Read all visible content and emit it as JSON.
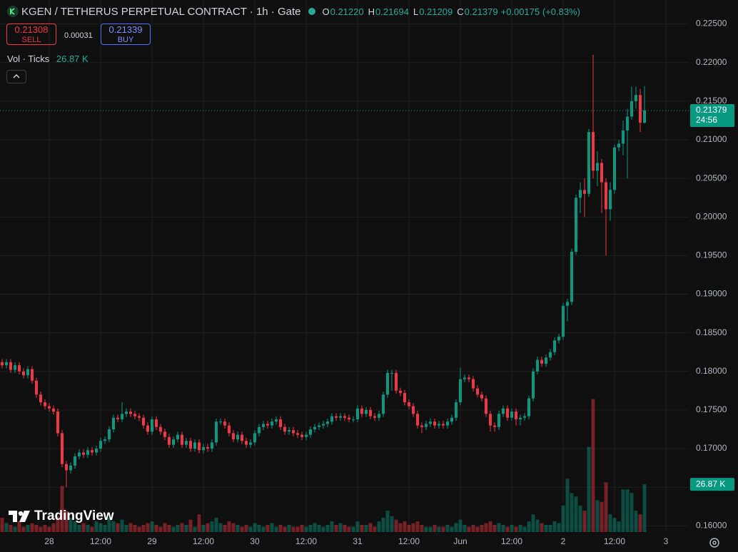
{
  "header": {
    "symbol_title": "KGEN / TETHERUS PERPETUAL CONTRACT · 1h · Gate",
    "ohlc": [
      {
        "key": "O",
        "value": "0.21220"
      },
      {
        "key": "H",
        "value": "0.21694"
      },
      {
        "key": "L",
        "value": "0.21209"
      },
      {
        "key": "C",
        "value": "0.21379"
      }
    ],
    "change": "+0.00175 (+0.83%)"
  },
  "trade_panel": {
    "sell_price": "0.21308",
    "sell_label": "SELL",
    "spread": "0.00031",
    "buy_price": "0.21339",
    "buy_label": "BUY"
  },
  "indicator": {
    "name": "Vol · Ticks",
    "value": "26.87 K"
  },
  "logo": "TradingView",
  "chart_data": {
    "type": "candlestick",
    "up_color": "#089981",
    "down_color": "#f23645",
    "grid": true,
    "xlim": [
      -0.5,
      160.33
    ],
    "xticks": [
      {
        "value": 11,
        "label": "28"
      },
      {
        "value": 23,
        "label": "12:00"
      },
      {
        "value": 35,
        "label": "29"
      },
      {
        "value": 47,
        "label": "12:00"
      },
      {
        "value": 59,
        "label": "30"
      },
      {
        "value": 71,
        "label": "12:00"
      },
      {
        "value": 83,
        "label": "31"
      },
      {
        "value": 95,
        "label": "12:00"
      },
      {
        "value": 107,
        "label": "Jun"
      },
      {
        "value": 119,
        "label": "12:00"
      },
      {
        "value": 131,
        "label": "2"
      },
      {
        "value": 143,
        "label": "12:00"
      },
      {
        "value": 155,
        "label": "3"
      }
    ],
    "ylim": [
      0.1592,
      0.2281
    ],
    "yticks": [
      {
        "value": 0.16,
        "label": "0.16000"
      },
      {
        "value": 0.165,
        "label": "0.16500"
      },
      {
        "value": 0.17,
        "label": "0.17000"
      },
      {
        "value": 0.175,
        "label": "0.17500"
      },
      {
        "value": 0.18,
        "label": "0.18000"
      },
      {
        "value": 0.185,
        "label": "0.18500"
      },
      {
        "value": 0.19,
        "label": "0.19000"
      },
      {
        "value": 0.195,
        "label": "0.19500"
      },
      {
        "value": 0.2,
        "label": "0.20000"
      },
      {
        "value": 0.205,
        "label": "0.20500"
      },
      {
        "value": 0.21,
        "label": "0.21000"
      },
      {
        "value": 0.215,
        "label": "0.21500"
      },
      {
        "value": 0.22,
        "label": "0.22000"
      },
      {
        "value": 0.225,
        "label": "0.22500"
      }
    ],
    "y2lim": [
      0,
      300
    ],
    "open": [
      0.1812,
      0.1808,
      0.1812,
      0.1802,
      0.1808,
      0.18,
      0.1795,
      0.1803,
      0.1788,
      0.177,
      0.176,
      0.1755,
      0.1752,
      0.1748,
      0.172,
      0.168,
      0.1672,
      0.1678,
      0.169,
      0.1695,
      0.1692,
      0.1698,
      0.1695,
      0.17,
      0.171,
      0.1712,
      0.1725,
      0.174,
      0.1738,
      0.1745,
      0.1748,
      0.1745,
      0.1742,
      0.174,
      0.173,
      0.1722,
      0.1738,
      0.1728,
      0.1722,
      0.1715,
      0.1705,
      0.1712,
      0.1718,
      0.1705,
      0.171,
      0.17,
      0.1708,
      0.1698,
      0.1702,
      0.17,
      0.1708,
      0.1735,
      0.1735,
      0.173,
      0.172,
      0.1712,
      0.1718,
      0.171,
      0.1705,
      0.1708,
      0.172,
      0.1728,
      0.1732,
      0.173,
      0.1735,
      0.1738,
      0.1728,
      0.1722,
      0.1724,
      0.172,
      0.1718,
      0.1715,
      0.1718,
      0.1725,
      0.1728,
      0.173,
      0.1732,
      0.1735,
      0.1742,
      0.174,
      0.1742,
      0.174,
      0.1738,
      0.1738,
      0.1752,
      0.1745,
      0.175,
      0.1742,
      0.174,
      0.1745,
      0.177,
      0.1798,
      0.1798,
      0.1775,
      0.1772,
      0.176,
      0.1755,
      0.1745,
      0.173,
      0.1728,
      0.1732,
      0.1735,
      0.173,
      0.1732,
      0.173,
      0.1735,
      0.174,
      0.176,
      0.179,
      0.1792,
      0.179,
      0.1778,
      0.177,
      0.1765,
      0.1745,
      0.173,
      0.1728,
      0.1745,
      0.1752,
      0.174,
      0.1748,
      0.1738,
      0.174,
      0.1742,
      0.1765,
      0.18,
      0.1815,
      0.181,
      0.1818,
      0.1825,
      0.184,
      0.1845,
      0.1885,
      0.189,
      0.1955,
      0.2025,
      0.2035,
      0.203,
      0.211,
      0.206,
      0.207,
      0.2045,
      0.201,
      0.2035,
      0.209,
      0.2095,
      0.2112,
      0.213,
      0.215,
      0.2158,
      0.2122
    ],
    "high": [
      0.1816,
      0.1816,
      0.1816,
      0.1812,
      0.1812,
      0.1804,
      0.1807,
      0.1807,
      0.1792,
      0.1774,
      0.1764,
      0.1759,
      0.1756,
      0.1752,
      0.1724,
      0.1684,
      0.1682,
      0.1694,
      0.1699,
      0.1699,
      0.1702,
      0.1702,
      0.1704,
      0.1714,
      0.1716,
      0.1729,
      0.1744,
      0.1744,
      0.176,
      0.1752,
      0.1752,
      0.1749,
      0.1746,
      0.1744,
      0.1734,
      0.1742,
      0.1742,
      0.1732,
      0.1726,
      0.1719,
      0.1716,
      0.1722,
      0.1722,
      0.1714,
      0.1714,
      0.1712,
      0.1712,
      0.1706,
      0.1706,
      0.1712,
      0.1739,
      0.1739,
      0.1739,
      0.1734,
      0.1724,
      0.1722,
      0.1722,
      0.1714,
      0.1712,
      0.1724,
      0.1732,
      0.1736,
      0.1736,
      0.1739,
      0.1742,
      0.1742,
      0.1732,
      0.1728,
      0.1728,
      0.1724,
      0.1722,
      0.1722,
      0.1729,
      0.1732,
      0.1734,
      0.1736,
      0.1739,
      0.1746,
      0.1746,
      0.1746,
      0.1746,
      0.1744,
      0.1742,
      0.1756,
      0.1756,
      0.1754,
      0.1754,
      0.1746,
      0.1749,
      0.1774,
      0.1802,
      0.1802,
      0.1802,
      0.1779,
      0.1776,
      0.1764,
      0.1759,
      0.1749,
      0.1734,
      0.1736,
      0.1739,
      0.1739,
      0.1736,
      0.1736,
      0.1739,
      0.1744,
      0.1764,
      0.1805,
      0.1796,
      0.1796,
      0.1794,
      0.1782,
      0.1774,
      0.1769,
      0.1749,
      0.1734,
      0.1749,
      0.1756,
      0.1756,
      0.1752,
      0.1752,
      0.1744,
      0.1746,
      0.1769,
      0.1804,
      0.1819,
      0.1819,
      0.1822,
      0.1829,
      0.1844,
      0.1849,
      0.1889,
      0.1894,
      0.1959,
      0.2029,
      0.2045,
      0.205,
      0.2114,
      0.221,
      0.2085,
      0.2075,
      0.205,
      0.2045,
      0.2094,
      0.21,
      0.2125,
      0.214,
      0.2169,
      0.2169,
      0.2166,
      0.21694
    ],
    "low": [
      0.1804,
      0.1804,
      0.1798,
      0.1798,
      0.1796,
      0.1791,
      0.1791,
      0.1784,
      0.1766,
      0.1756,
      0.1751,
      0.1748,
      0.1744,
      0.1716,
      0.1676,
      0.165,
      0.1668,
      0.1674,
      0.1686,
      0.1688,
      0.1688,
      0.1691,
      0.1691,
      0.1696,
      0.1706,
      0.1708,
      0.1721,
      0.1734,
      0.1734,
      0.1741,
      0.1741,
      0.1738,
      0.1736,
      0.1726,
      0.1718,
      0.1718,
      0.1724,
      0.1718,
      0.1711,
      0.1701,
      0.1701,
      0.1708,
      0.1701,
      0.1701,
      0.1696,
      0.1696,
      0.1694,
      0.1694,
      0.1696,
      0.1696,
      0.1704,
      0.1731,
      0.1726,
      0.1716,
      0.1708,
      0.1708,
      0.1706,
      0.1701,
      0.1701,
      0.1704,
      0.1716,
      0.1724,
      0.1726,
      0.1726,
      0.1731,
      0.1724,
      0.1718,
      0.1718,
      0.1716,
      0.1714,
      0.1711,
      0.1711,
      0.1714,
      0.1721,
      0.1724,
      0.1726,
      0.1728,
      0.1731,
      0.1736,
      0.1736,
      0.1736,
      0.1734,
      0.1734,
      0.1734,
      0.1741,
      0.1741,
      0.1738,
      0.1736,
      0.1736,
      0.1741,
      0.1766,
      0.1775,
      0.1771,
      0.1768,
      0.1756,
      0.1751,
      0.1741,
      0.1726,
      0.172,
      0.1724,
      0.1728,
      0.1726,
      0.1726,
      0.1726,
      0.1726,
      0.1731,
      0.1736,
      0.1756,
      0.1786,
      0.1786,
      0.1774,
      0.1766,
      0.1761,
      0.1741,
      0.1722,
      0.1722,
      0.1724,
      0.1741,
      0.1736,
      0.1736,
      0.173,
      0.173,
      0.1736,
      0.1738,
      0.1761,
      0.1796,
      0.1806,
      0.1806,
      0.1814,
      0.1821,
      0.1836,
      0.1841,
      0.1865,
      0.1886,
      0.1951,
      0.2005,
      0.2,
      0.2026,
      0.205,
      0.204,
      0.2005,
      0.195,
      0.1995,
      0.203,
      0.2085,
      0.208,
      0.205,
      0.2126,
      0.214,
      0.211,
      0.21209
    ],
    "close": [
      0.1808,
      0.1812,
      0.1802,
      0.1808,
      0.18,
      0.1795,
      0.1803,
      0.1788,
      0.177,
      0.176,
      0.1755,
      0.1752,
      0.1748,
      0.172,
      0.168,
      0.1672,
      0.1678,
      0.169,
      0.1695,
      0.1692,
      0.1698,
      0.1695,
      0.17,
      0.171,
      0.1712,
      0.1725,
      0.174,
      0.1738,
      0.1745,
      0.1748,
      0.1745,
      0.1742,
      0.174,
      0.173,
      0.1722,
      0.1738,
      0.1728,
      0.1722,
      0.1715,
      0.1705,
      0.1712,
      0.1718,
      0.1705,
      0.171,
      0.17,
      0.1708,
      0.1698,
      0.1702,
      0.17,
      0.1708,
      0.1735,
      0.1735,
      0.173,
      0.172,
      0.1712,
      0.1718,
      0.171,
      0.1705,
      0.1708,
      0.172,
      0.1728,
      0.1732,
      0.173,
      0.1735,
      0.1738,
      0.1728,
      0.1722,
      0.1724,
      0.172,
      0.1718,
      0.1715,
      0.1718,
      0.1725,
      0.1728,
      0.173,
      0.1732,
      0.1735,
      0.1742,
      0.174,
      0.1742,
      0.174,
      0.1738,
      0.1738,
      0.1752,
      0.1745,
      0.175,
      0.1742,
      0.174,
      0.1745,
      0.177,
      0.1798,
      0.1798,
      0.1775,
      0.1772,
      0.176,
      0.1755,
      0.1745,
      0.173,
      0.1728,
      0.1732,
      0.1735,
      0.173,
      0.1732,
      0.173,
      0.1735,
      0.174,
      0.176,
      0.179,
      0.1792,
      0.179,
      0.1778,
      0.177,
      0.1765,
      0.1745,
      0.173,
      0.1728,
      0.1745,
      0.1752,
      0.174,
      0.1748,
      0.1738,
      0.174,
      0.1742,
      0.1765,
      0.18,
      0.1815,
      0.181,
      0.1818,
      0.1825,
      0.184,
      0.1845,
      0.1885,
      0.189,
      0.1955,
      0.2025,
      0.2035,
      0.203,
      0.211,
      0.206,
      0.207,
      0.2045,
      0.201,
      0.2035,
      0.209,
      0.2095,
      0.2112,
      0.213,
      0.215,
      0.2158,
      0.2122,
      0.21379
    ],
    "volume": [
      8,
      5,
      4,
      3,
      6,
      3,
      4,
      5,
      4,
      3,
      4,
      3,
      5,
      9,
      26,
      12,
      8,
      6,
      4,
      5,
      4,
      3,
      6,
      5,
      4,
      8,
      6,
      5,
      7,
      4,
      5,
      4,
      3,
      4,
      5,
      6,
      4,
      3,
      5,
      4,
      3,
      4,
      5,
      4,
      7,
      3,
      10,
      4,
      5,
      6,
      8,
      5,
      4,
      6,
      5,
      4,
      3,
      4,
      3,
      5,
      4,
      3,
      4,
      5,
      3,
      4,
      3,
      4,
      3,
      3,
      4,
      3,
      4,
      5,
      4,
      3,
      4,
      6,
      4,
      5,
      4,
      3,
      3,
      6,
      4,
      4,
      5,
      3,
      6,
      8,
      12,
      9,
      7,
      5,
      6,
      4,
      5,
      6,
      4,
      3,
      3,
      4,
      3,
      3,
      4,
      3,
      5,
      7,
      4,
      3,
      4,
      3,
      4,
      5,
      6,
      4,
      5,
      4,
      3,
      4,
      3,
      4,
      3,
      6,
      10,
      7,
      5,
      4,
      4,
      6,
      5,
      15,
      30,
      22,
      20,
      15,
      12,
      48,
      75,
      18,
      17,
      28,
      10,
      8,
      6,
      24,
      24,
      22,
      12,
      10,
      26.87
    ],
    "volume_label": "26.87 K",
    "last_price": 0.21379,
    "countdown": "24:56"
  }
}
